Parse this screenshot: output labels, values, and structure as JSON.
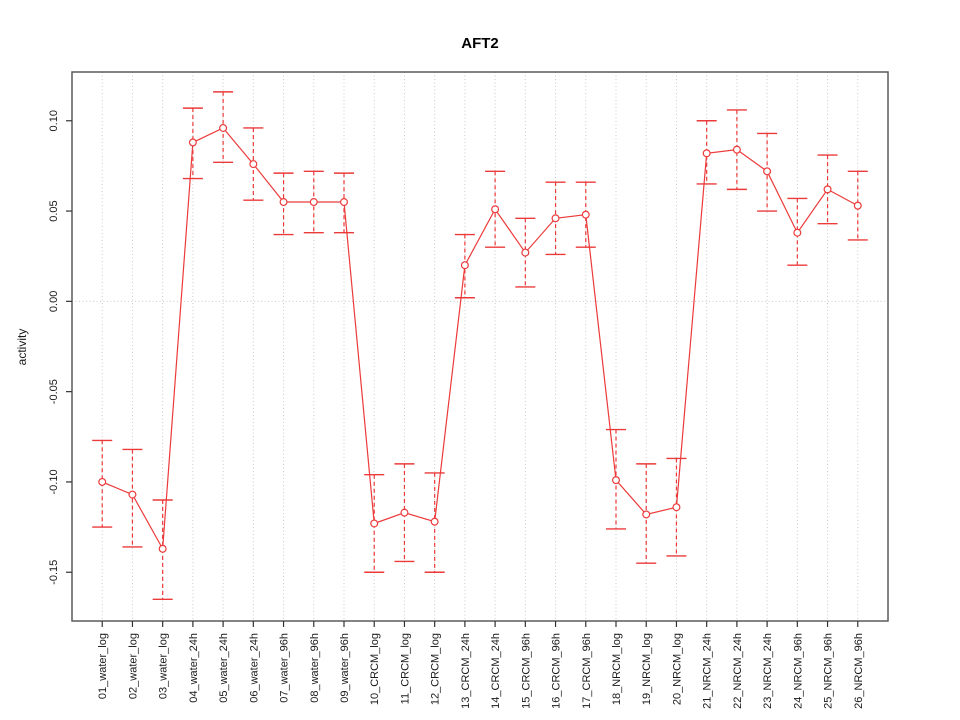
{
  "chart_data": {
    "type": "line",
    "title": "AFT2",
    "xlabel": "",
    "ylabel": "activity",
    "legend": null,
    "grid": {
      "vertical": "dotted-per-category",
      "horizontal_zero_line": true
    },
    "ylim": [
      -0.177,
      0.127
    ],
    "yticks": [
      -0.15,
      -0.1,
      -0.05,
      0.0,
      0.05,
      0.1
    ],
    "categories": [
      "01_water_log",
      "02_water_log",
      "03_water_log",
      "04_water_24h",
      "05_water_24h",
      "06_water_24h",
      "07_water_96h",
      "08_water_96h",
      "09_water_96h",
      "10_CRCM_log",
      "11_CRCM_log",
      "12_CRCM_log",
      "13_CRCM_24h",
      "14_CRCM_24h",
      "15_CRCM_96h",
      "16_CRCM_96h",
      "17_CRCM_96h",
      "18_NRCM_log",
      "19_NRCM_log",
      "20_NRCM_log",
      "21_NRCM_24h",
      "22_NRCM_24h",
      "23_NRCM_24h",
      "24_NRCM_96h",
      "25_NRCM_96h",
      "26_NRCM_96h"
    ],
    "series": [
      {
        "name": "activity",
        "marker": "open-circle",
        "line_style": "solid",
        "error_bar_style": "dashed",
        "values": [
          -0.1,
          -0.107,
          -0.137,
          0.088,
          0.096,
          0.076,
          0.055,
          0.055,
          0.055,
          -0.123,
          -0.117,
          -0.122,
          0.02,
          0.051,
          0.027,
          0.046,
          0.048,
          -0.099,
          -0.118,
          -0.114,
          0.082,
          0.084,
          0.072,
          0.038,
          0.062,
          0.053
        ],
        "upper": [
          -0.077,
          -0.082,
          -0.11,
          0.107,
          0.116,
          0.096,
          0.071,
          0.072,
          0.071,
          -0.096,
          -0.09,
          -0.095,
          0.037,
          0.072,
          0.046,
          0.066,
          0.066,
          -0.071,
          -0.09,
          -0.087,
          0.1,
          0.106,
          0.093,
          0.057,
          0.081,
          0.072
        ],
        "lower": [
          -0.125,
          -0.136,
          -0.165,
          0.068,
          0.077,
          0.056,
          0.037,
          0.038,
          0.038,
          -0.15,
          -0.144,
          -0.15,
          0.002,
          0.03,
          0.008,
          0.026,
          0.03,
          -0.126,
          -0.145,
          -0.141,
          0.065,
          0.062,
          0.05,
          0.02,
          0.043,
          0.034
        ]
      }
    ],
    "colors": {
      "series": "#ec3a3a",
      "grid": "#c9c9c9",
      "box": "#5a5a5a",
      "tick": "#333333",
      "text": "#1a1a1a"
    }
  }
}
